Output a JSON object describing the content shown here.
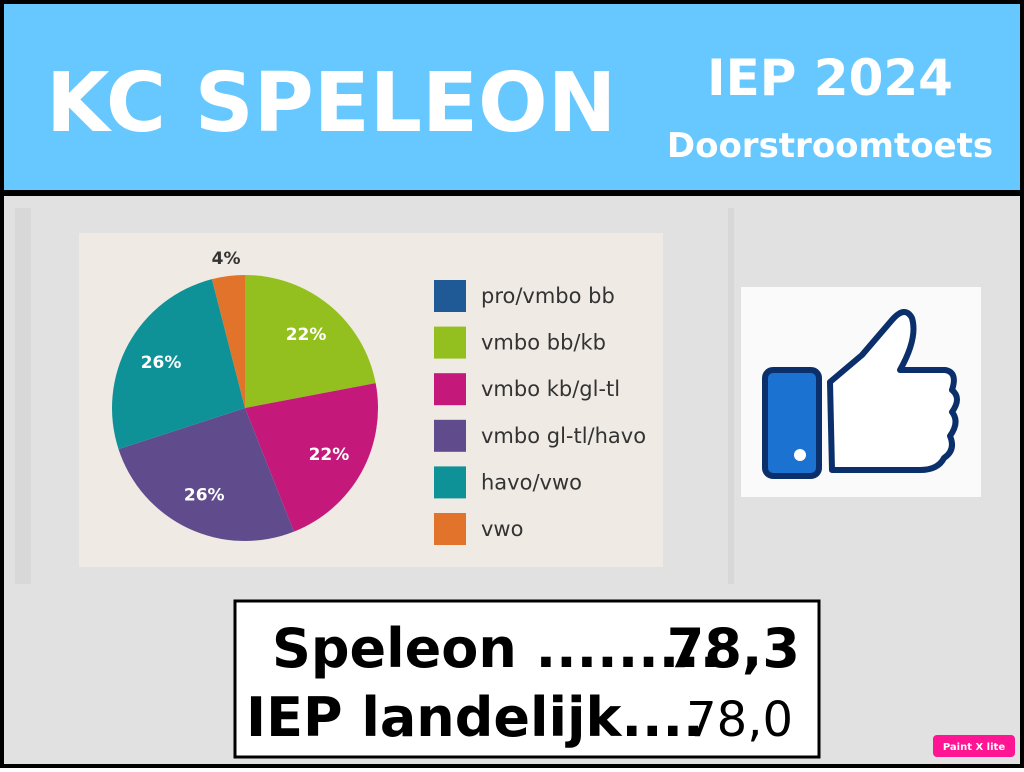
{
  "header": {
    "title": "KC SPELEON",
    "exam": "IEP 2024",
    "subtitle": "Doorstroomtoets"
  },
  "chart_data": {
    "type": "pie",
    "categories": [
      "pro/vmbo bb",
      "vmbo bb/kb",
      "vmbo kb/gl-tl",
      "vmbo gl-tl/havo",
      "havo/vwo",
      "vwo"
    ],
    "values": [
      0,
      22,
      22,
      26,
      26,
      4
    ],
    "value_labels": [
      null,
      "22%",
      "22%",
      "26%",
      "26%",
      "4%"
    ],
    "colors": [
      "#1f5a96",
      "#93c01f",
      "#c4197a",
      "#604c8d",
      "#0f9297",
      "#e2732b"
    ]
  },
  "scores": {
    "rows": [
      [
        "Speleon  .........",
        "78,3"
      ],
      [
        "IEP landelijk....",
        "78,0"
      ]
    ]
  },
  "badge": "Paint X lite"
}
